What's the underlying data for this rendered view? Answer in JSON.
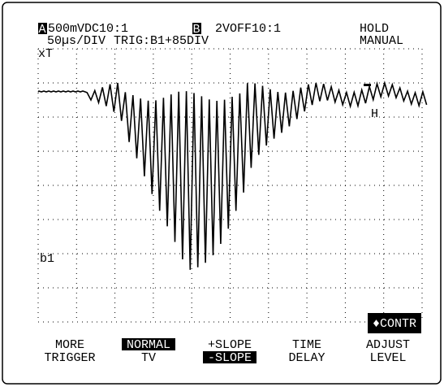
{
  "header": {
    "channel_a_label": "A",
    "channel_a": "500mVDC10:1",
    "channel_b_label": "B",
    "channel_b": "2VOFF10:1",
    "mode": "HOLD",
    "timebase": "50µs/DIV",
    "trigger": "TRIG:B1+85DIV",
    "range": "MANUAL"
  },
  "markers": {
    "trigger_time": "xT",
    "channel_b": "b1",
    "level": "H"
  },
  "contrast": "♦CONTR",
  "softkeys": [
    {
      "top": "MORE",
      "bottom": "TRIGGER"
    },
    {
      "top": "NORMAL",
      "bottom": "TV"
    },
    {
      "top": "+SLOPE",
      "bottom": "-SLOPE"
    },
    {
      "top": "TIME",
      "bottom": "DELAY"
    },
    {
      "top": "ADJUST",
      "bottom": "LEVEL"
    }
  ]
}
